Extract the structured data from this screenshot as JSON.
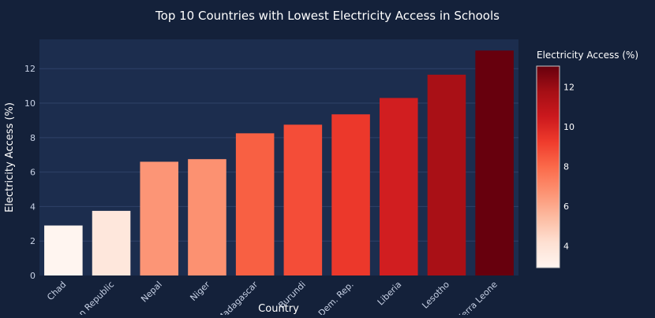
{
  "chart_data": {
    "type": "bar",
    "title": "Top 10 Countries with Lowest Electricity Access in Schools",
    "xlabel": "Country",
    "ylabel": "Electricity Access (%)",
    "ylim": [
      0,
      13.7
    ],
    "yticks": [
      0,
      2,
      4,
      6,
      8,
      10,
      12
    ],
    "grid": true,
    "categories": [
      "Chad",
      "Central African Republic",
      "Nepal",
      "Niger",
      "Madagascar",
      "Burundi",
      "Dem. Rep.",
      "Liberia",
      "Lesotho",
      "Sierra Leone"
    ],
    "tick_labels": [
      "Chad",
      "an Republic",
      "Nepal",
      "Niger",
      "Madagascar",
      "Burundi",
      "Dem. Rep.",
      "Liberia",
      "Lesotho",
      "Sierra Leone"
    ],
    "values": [
      2.9,
      3.75,
      6.6,
      6.75,
      8.25,
      8.75,
      9.35,
      10.3,
      11.65,
      13.05
    ],
    "colorbar": {
      "title": "Electricity Access (%)",
      "ticks": [
        4,
        6,
        8,
        10,
        12
      ],
      "range": [
        2.9,
        13.05
      ],
      "colorscale": [
        "#fff5f0",
        "#fee0d2",
        "#fcbba1",
        "#fc9272",
        "#fb6a4a",
        "#ef3b2c",
        "#cb181d",
        "#a50f15",
        "#67000d"
      ]
    }
  }
}
